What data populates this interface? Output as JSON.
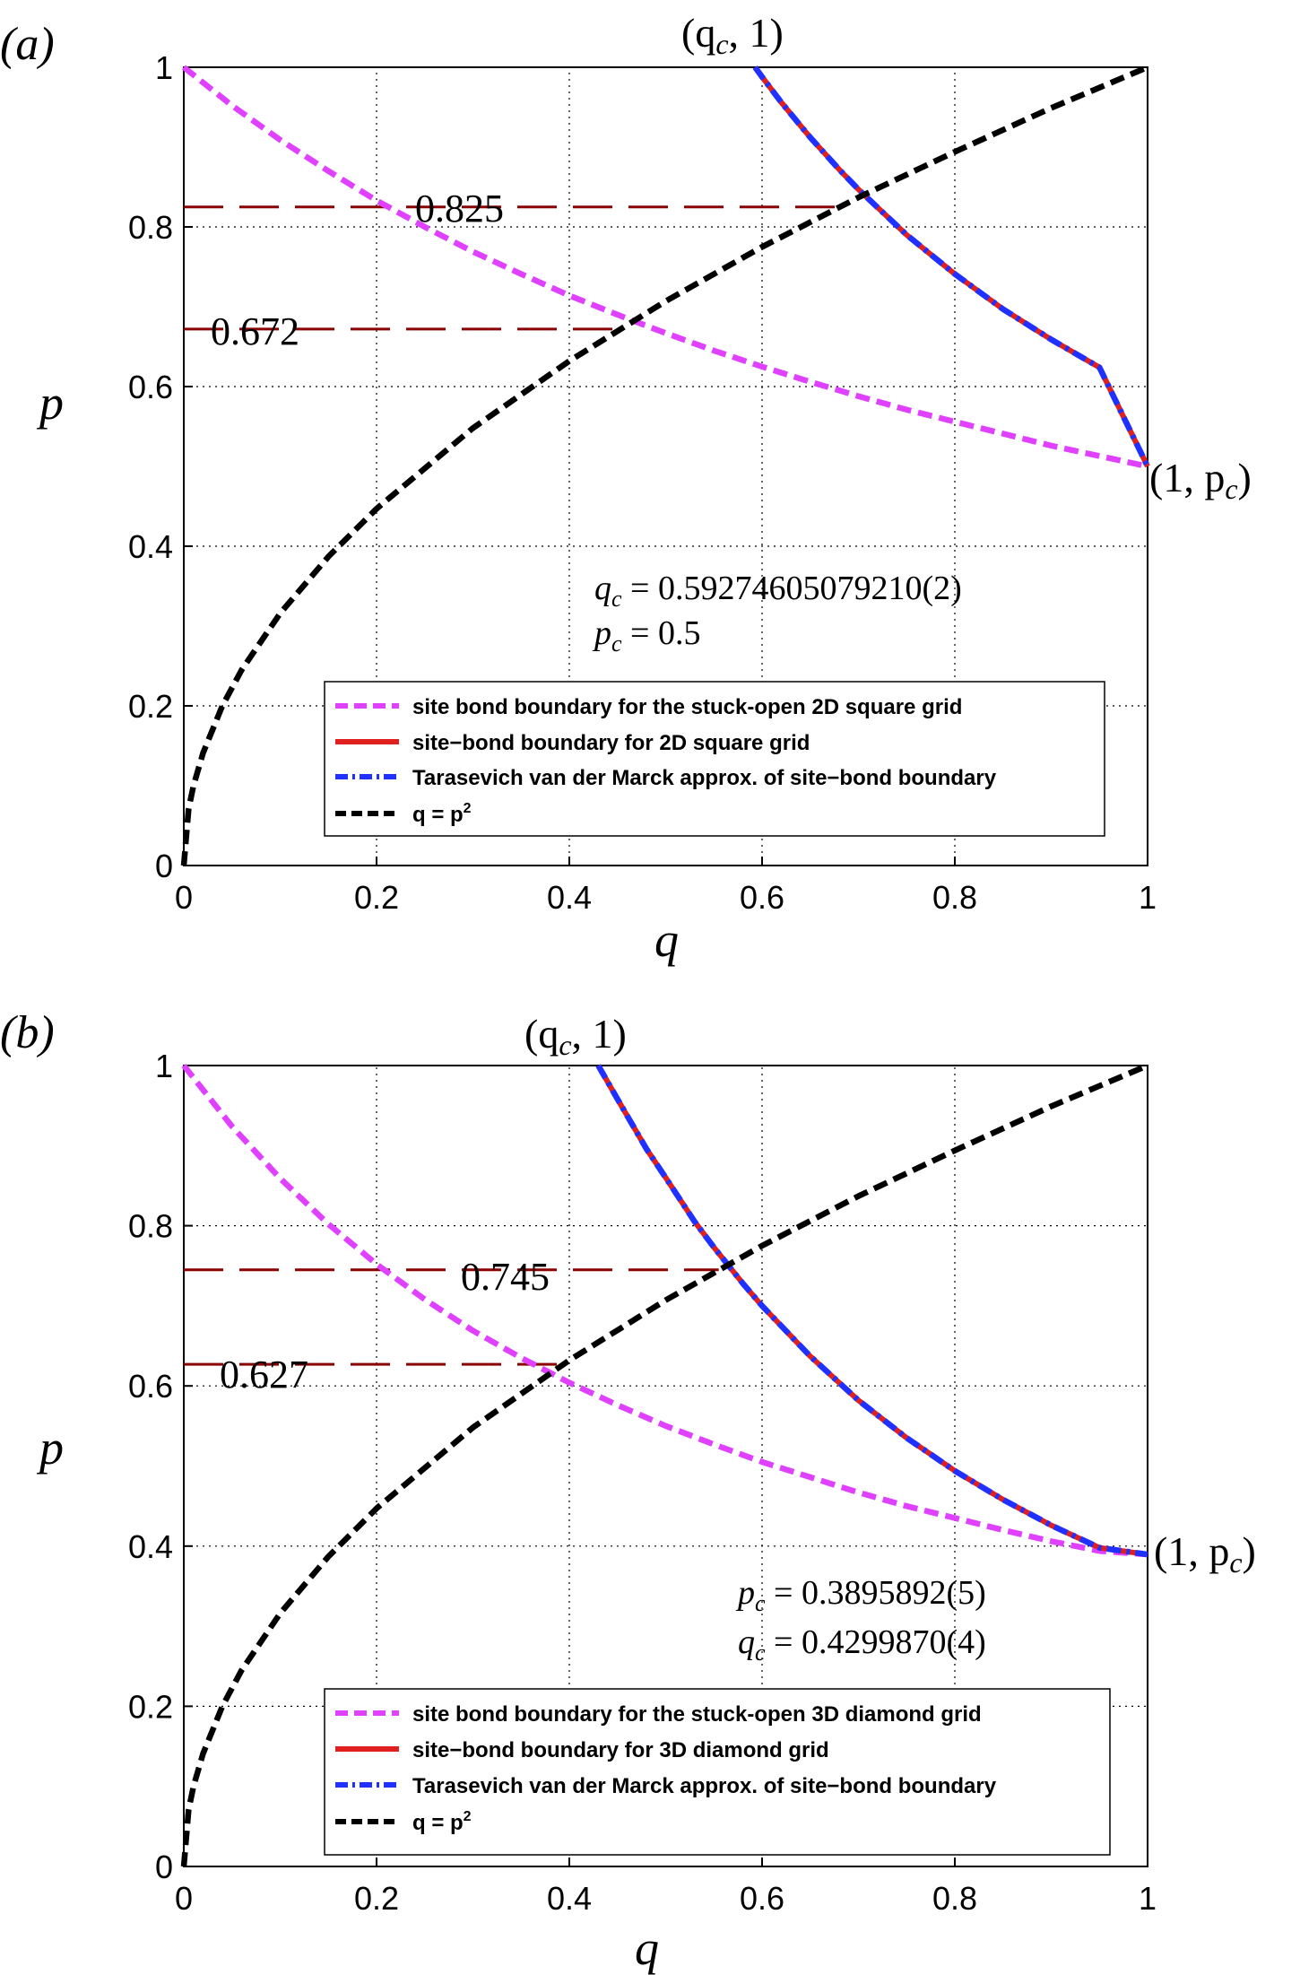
{
  "chart_data": [
    {
      "type": "line",
      "panel_label": "(a)",
      "xlabel": "q",
      "ylabel": "p",
      "xlim": [
        0,
        1
      ],
      "ylim": [
        0,
        1
      ],
      "x_ticks": [
        "0",
        "0.2",
        "0.4",
        "0.6",
        "0.8",
        "1"
      ],
      "y_ticks": [
        "0",
        "0.2",
        "0.4",
        "0.6",
        "0.8",
        "1"
      ],
      "grid": true,
      "legend_position": "bottom-right",
      "series": [
        {
          "name": "site bond boundary for the stuck-open 2D square grid",
          "color": "#e040ff",
          "style": "dashed",
          "x": [
            0,
            0.05,
            0.1,
            0.15,
            0.2,
            0.25,
            0.3,
            0.35,
            0.4,
            0.45,
            0.5,
            0.55,
            0.6,
            0.65,
            0.7,
            0.75,
            0.8,
            0.85,
            0.9,
            0.95,
            1.0
          ],
          "y": [
            1.0,
            0.952,
            0.909,
            0.87,
            0.833,
            0.8,
            0.769,
            0.741,
            0.714,
            0.69,
            0.667,
            0.645,
            0.625,
            0.606,
            0.588,
            0.571,
            0.556,
            0.541,
            0.526,
            0.513,
            0.5
          ]
        },
        {
          "name": "site−bond boundary for 2D square grid",
          "color": "#e0201f",
          "style": "solid",
          "x": [
            0.5927,
            0.6,
            0.62,
            0.65,
            0.68,
            0.7,
            0.75,
            0.8,
            0.85,
            0.9,
            0.95,
            1.0
          ],
          "y": [
            1.0,
            0.988,
            0.956,
            0.912,
            0.872,
            0.847,
            0.79,
            0.741,
            0.697,
            0.659,
            0.624,
            0.5
          ]
        },
        {
          "name": "Tarasevich van der Marck approx. of site−bond boundary",
          "color": "#2030ff",
          "style": "dashdot",
          "x": [
            0.5927,
            0.6,
            0.62,
            0.65,
            0.68,
            0.7,
            0.75,
            0.8,
            0.85,
            0.9,
            0.95,
            1.0
          ],
          "y": [
            1.0,
            0.988,
            0.956,
            0.912,
            0.872,
            0.847,
            0.79,
            0.741,
            0.697,
            0.659,
            0.624,
            0.5
          ]
        },
        {
          "name": "q = p",
          "name_sup": "2",
          "color": "#000000",
          "style": "dashed",
          "x": [
            0,
            0.005,
            0.01,
            0.02,
            0.04,
            0.06,
            0.1,
            0.15,
            0.2,
            0.3,
            0.4,
            0.5,
            0.6,
            0.7,
            0.8,
            0.9,
            1.0
          ],
          "y": [
            0,
            0.071,
            0.1,
            0.141,
            0.2,
            0.245,
            0.316,
            0.387,
            0.447,
            0.548,
            0.632,
            0.707,
            0.775,
            0.837,
            0.894,
            0.949,
            1.0
          ]
        }
      ],
      "hlines": [
        {
          "y": 0.825,
          "x_end": 0.68,
          "label": "0.825"
        },
        {
          "y": 0.672,
          "x_end": 0.45,
          "label": "0.672"
        }
      ],
      "annotations": {
        "top_point_label": "(q",
        "top_point_sub": "c",
        "top_point_tail": ", 1)",
        "right_point_label": "(1, p",
        "right_point_sub": "c",
        "right_point_tail": ")",
        "stat1_var": "q",
        "stat1_sub": "c",
        "stat1_value": " = 0.59274605079210(2)",
        "stat2_var": "p",
        "stat2_sub": "c",
        "stat2_value": " = 0.5"
      }
    },
    {
      "type": "line",
      "panel_label": "(b)",
      "xlabel": "q",
      "ylabel": "p",
      "xlim": [
        0,
        1
      ],
      "ylim": [
        0,
        1
      ],
      "x_ticks": [
        "0",
        "0.2",
        "0.4",
        "0.6",
        "0.8",
        "1"
      ],
      "y_ticks": [
        "0",
        "0.2",
        "0.4",
        "0.6",
        "0.8",
        "1"
      ],
      "grid": true,
      "legend_position": "bottom-right",
      "series": [
        {
          "name": "site bond boundary for the stuck-open 3D diamond grid",
          "color": "#e040ff",
          "style": "dashed",
          "x": [
            0,
            0.05,
            0.1,
            0.15,
            0.2,
            0.25,
            0.3,
            0.35,
            0.4,
            0.45,
            0.5,
            0.55,
            0.6,
            0.65,
            0.7,
            0.75,
            0.8,
            0.85,
            0.9,
            0.95,
            1.0
          ],
          "y": [
            1.0,
            0.924,
            0.859,
            0.802,
            0.752,
            0.708,
            0.669,
            0.635,
            0.604,
            0.576,
            0.55,
            0.527,
            0.505,
            0.486,
            0.467,
            0.45,
            0.435,
            0.42,
            0.406,
            0.394,
            0.3896
          ]
        },
        {
          "name": "site−bond boundary for 3D diamond grid",
          "color": "#e0201f",
          "style": "solid",
          "x": [
            0.43,
            0.45,
            0.48,
            0.5,
            0.53,
            0.55,
            0.58,
            0.6,
            0.65,
            0.7,
            0.75,
            0.8,
            0.85,
            0.9,
            0.95,
            1.0
          ],
          "y": [
            1.0,
            0.958,
            0.896,
            0.86,
            0.805,
            0.773,
            0.728,
            0.7,
            0.637,
            0.582,
            0.535,
            0.494,
            0.458,
            0.426,
            0.398,
            0.3896
          ]
        },
        {
          "name": "Tarasevich van der Marck approx. of site−bond boundary",
          "color": "#2030ff",
          "style": "dashdot",
          "x": [
            0.43,
            0.45,
            0.48,
            0.5,
            0.53,
            0.55,
            0.58,
            0.6,
            0.65,
            0.7,
            0.75,
            0.8,
            0.85,
            0.9,
            0.95,
            1.0
          ],
          "y": [
            1.0,
            0.958,
            0.896,
            0.86,
            0.805,
            0.773,
            0.728,
            0.7,
            0.637,
            0.582,
            0.535,
            0.494,
            0.458,
            0.426,
            0.398,
            0.3896
          ]
        },
        {
          "name": "q = p",
          "name_sup": "2",
          "color": "#000000",
          "style": "dashed",
          "x": [
            0,
            0.005,
            0.01,
            0.02,
            0.04,
            0.06,
            0.1,
            0.15,
            0.2,
            0.3,
            0.4,
            0.5,
            0.6,
            0.7,
            0.8,
            0.9,
            1.0
          ],
          "y": [
            0,
            0.071,
            0.1,
            0.141,
            0.2,
            0.245,
            0.316,
            0.387,
            0.447,
            0.548,
            0.632,
            0.707,
            0.775,
            0.837,
            0.894,
            0.949,
            1.0
          ]
        }
      ],
      "hlines": [
        {
          "y": 0.745,
          "x_end": 0.555,
          "label": "0.745"
        },
        {
          "y": 0.627,
          "x_end": 0.393,
          "label": "0.627"
        }
      ],
      "annotations": {
        "top_point_label": "(q",
        "top_point_sub": "c",
        "top_point_tail": ", 1)",
        "right_point_label": "(1, p",
        "right_point_sub": "c",
        "right_point_tail": ")",
        "stat1_var": "p",
        "stat1_sub": "c",
        "stat1_value": " = 0.3895892(5)",
        "stat2_var": "q",
        "stat2_sub": "c",
        "stat2_value": " = 0.4299870(4)"
      }
    }
  ]
}
